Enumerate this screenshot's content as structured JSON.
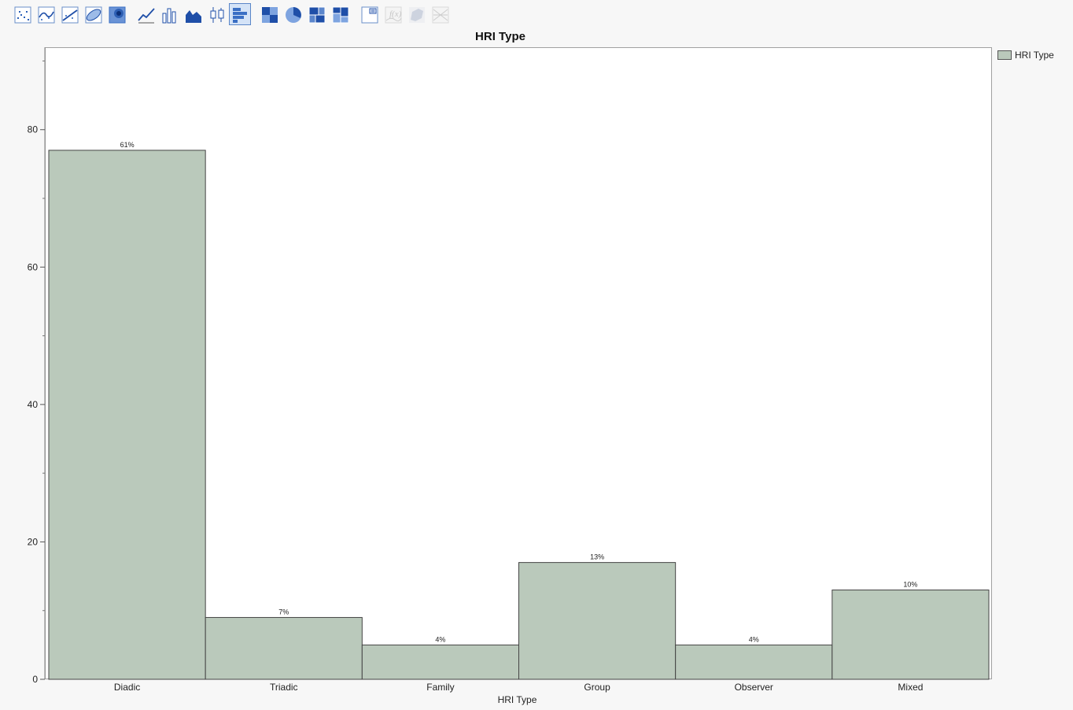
{
  "toolbar": {
    "buttons": [
      {
        "name": "points-icon",
        "active": false,
        "disabled": false
      },
      {
        "name": "smoother-icon",
        "active": false,
        "disabled": false
      },
      {
        "name": "line-of-fit-icon",
        "active": false,
        "disabled": false
      },
      {
        "name": "ellipse-icon",
        "active": false,
        "disabled": false
      },
      {
        "name": "contour-icon",
        "active": false,
        "disabled": false
      },
      {
        "name": "line-icon",
        "active": false,
        "disabled": false
      },
      {
        "name": "bar-icon",
        "active": false,
        "disabled": false
      },
      {
        "name": "area-icon",
        "active": false,
        "disabled": false
      },
      {
        "name": "box-plot-icon",
        "active": false,
        "disabled": false
      },
      {
        "name": "histogram-icon",
        "active": true,
        "disabled": false
      },
      {
        "name": "heatmap-icon",
        "active": false,
        "disabled": false
      },
      {
        "name": "pie-icon",
        "active": false,
        "disabled": false
      },
      {
        "name": "treemap-icon",
        "active": false,
        "disabled": false
      },
      {
        "name": "mosaic-icon",
        "active": false,
        "disabled": false
      },
      {
        "name": "caption-box-icon",
        "active": false,
        "disabled": false
      },
      {
        "name": "formula-icon",
        "active": false,
        "disabled": true
      },
      {
        "name": "map-shapes-icon",
        "active": false,
        "disabled": true
      },
      {
        "name": "parallel-icon",
        "active": false,
        "disabled": true
      }
    ]
  },
  "legend": {
    "label": "HRI Type",
    "placement": "right"
  },
  "colors": {
    "bar_fill": "#bac9bb",
    "bar_stroke": "#444444",
    "accent": "#3a6fc4"
  },
  "chart_data": {
    "type": "bar",
    "title": "HRI Type",
    "xlabel": "HRI Type",
    "ylabel": "",
    "categories": [
      "Diadic",
      "Triadic",
      "Family",
      "Group",
      "Observer",
      "Mixed"
    ],
    "values": [
      77,
      9,
      5,
      17,
      5,
      13
    ],
    "data_labels": [
      "61%",
      "7%",
      "4%",
      "13%",
      "4%",
      "10%"
    ],
    "ylim": [
      0,
      92
    ],
    "yticks": [
      0,
      20,
      40,
      60,
      80
    ],
    "grid": false,
    "legend": "top-right"
  }
}
